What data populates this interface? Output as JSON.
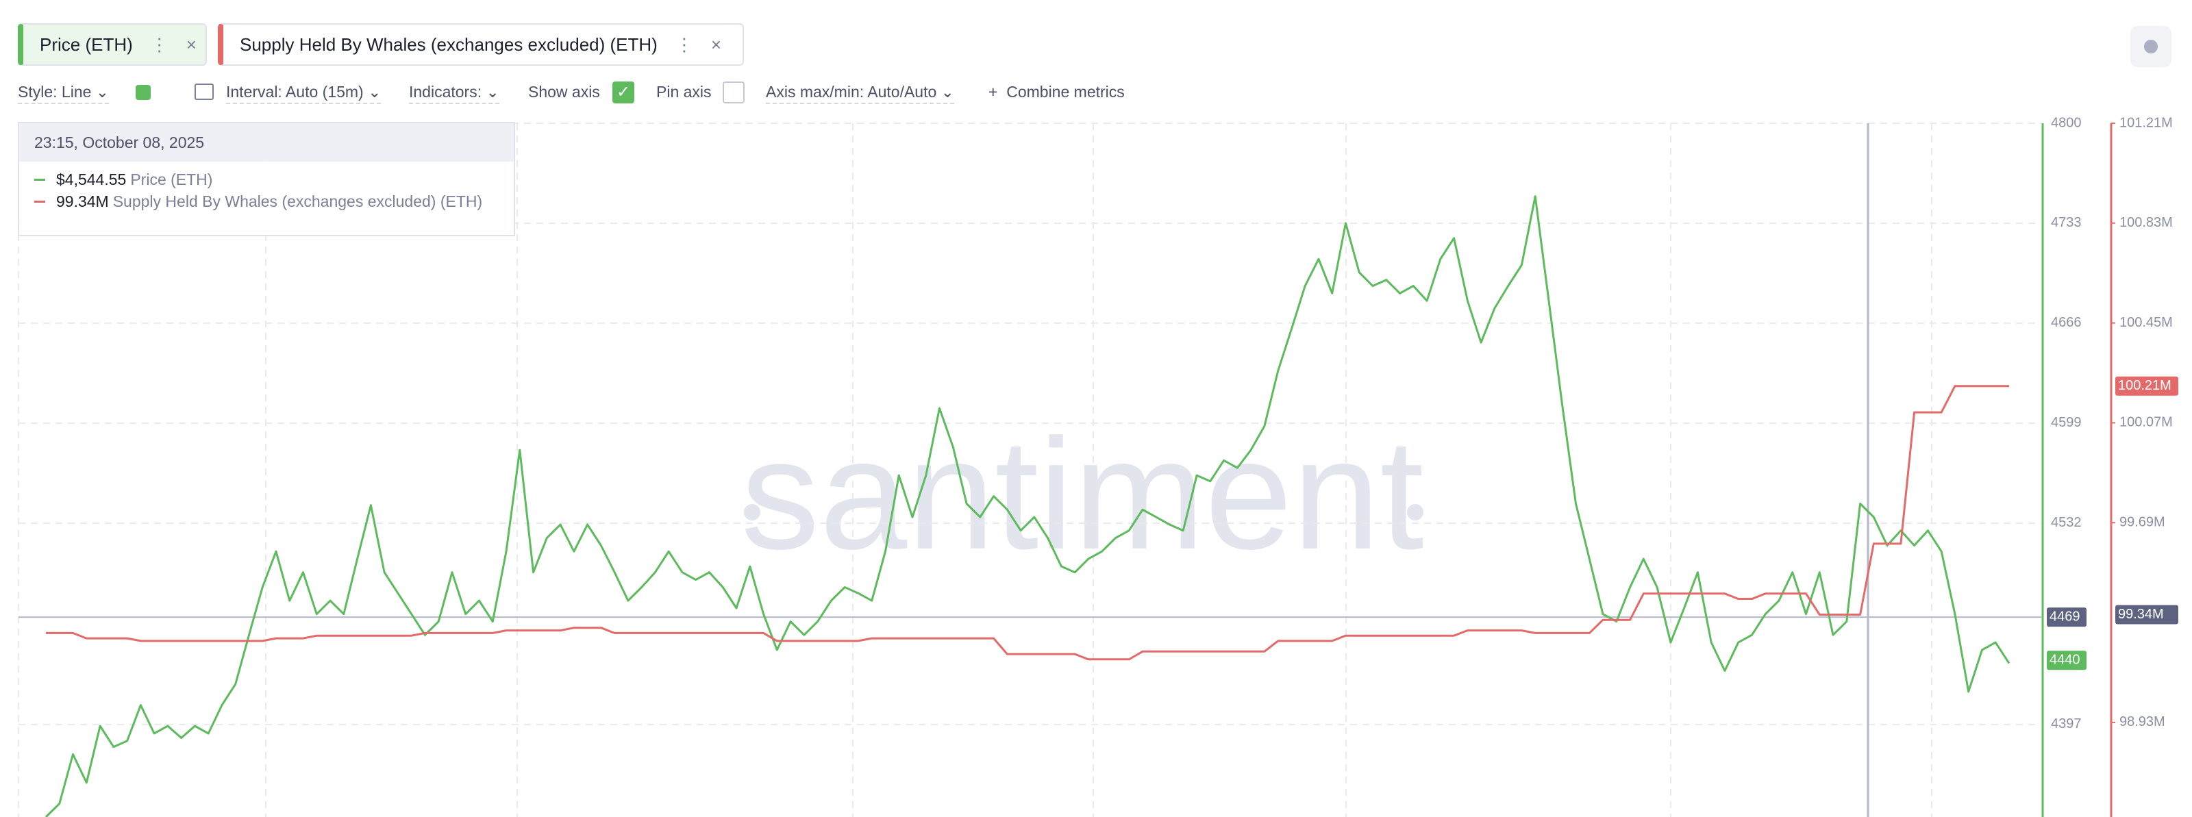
{
  "tabs_note_free": null,
  "toolbar": [
    "Style: Line",
    "Interval: Auto (15m)",
    "Indicators:",
    "Show axis",
    "Pin axis",
    "Axis max/min: Auto/Auto",
    "Combine metrics"
  ],
  "tooltip": {
    "time": "23:15, October 08, 2025",
    "rows": [
      "$4,544.55",
      "99.34M"
    ]
  },
  "chart_data": {
    "type": "line",
    "watermark": "santiment",
    "grid": true,
    "ylim": [
      4335,
      4800
    ],
    "yticks": [
      4397,
      4532,
      4599,
      4666,
      4733,
      4800
    ],
    "y2lim": [
      98570000,
      101210000
    ],
    "y2ticks": [
      {
        "value": 98930000,
        "label": "98.93M"
      },
      {
        "value": 99690000,
        "label": "99.69M"
      },
      {
        "value": 100070000,
        "label": "100.07M"
      },
      {
        "value": 100450000,
        "label": "100.45M"
      },
      {
        "value": 100830000,
        "label": "100.83M"
      },
      {
        "value": 101210000,
        "label": "101.21M"
      }
    ],
    "axis_markers": [
      {
        "value": 4469,
        "axis": "y",
        "color": "#5d6280"
      },
      {
        "value": 4440,
        "axis": "y",
        "color": "#5dba5d"
      },
      {
        "value": 99340000,
        "label": "99.34M",
        "axis": "y2",
        "color": "#5d6280"
      },
      {
        "value": 100210000,
        "label": "100.21M",
        "axis": "y2",
        "color": "#e46a6a"
      }
    ],
    "series": [
      {
        "name": "Price (ETH)",
        "color": "#5dba5d",
        "axis": "y1",
        "values": [
          4335,
          4344,
          4377,
          4358,
          4396,
          4382,
          4386,
          4410,
          4391,
          4396,
          4388,
          4396,
          4391,
          4410,
          4424,
          4457,
          4489,
          4513,
          4480,
          4499,
          4471,
          4480,
          4471,
          4508,
          4544,
          4499,
          4485,
          4471,
          4457,
          4466,
          4499,
          4471,
          4480,
          4466,
          4513,
          4581,
          4499,
          4522,
          4531,
          4513,
          4531,
          4517,
          4499,
          4480,
          4489,
          4499,
          4513,
          4499,
          4494,
          4499,
          4489,
          4475,
          4503,
          4471,
          4447,
          4466,
          4457,
          4466,
          4480,
          4489,
          4485,
          4480,
          4513,
          4564,
          4536,
          4564,
          4609,
          4583,
          4545,
          4536,
          4550,
          4541,
          4527,
          4536,
          4522,
          4503,
          4499,
          4508,
          4513,
          4522,
          4527,
          4541,
          4536,
          4531,
          4527,
          4564,
          4560,
          4574,
          4569,
          4581,
          4597,
          4634,
          4662,
          4691,
          4709,
          4686,
          4733,
          4700,
          4691,
          4695,
          4686,
          4691,
          4681,
          4709,
          4723,
          4681,
          4653,
          4676,
          4691,
          4705,
          4751,
          4681,
          4611,
          4545,
          4508,
          4471,
          4466,
          4489,
          4508,
          4489,
          4452,
          4475,
          4499,
          4452,
          4433,
          4452,
          4457,
          4471,
          4480,
          4499,
          4471,
          4499,
          4457,
          4466,
          4545,
          4536,
          4517,
          4527,
          4517,
          4527,
          4513,
          4471,
          4419,
          4447,
          4452,
          4438
        ]
      },
      {
        "name": "Supply Held By Whales (exchanges excluded) (ETH)",
        "color": "#e46a6a",
        "axis": "y2",
        "values": [
          99270000,
          99270000,
          99270000,
          99250000,
          99250000,
          99250000,
          99250000,
          99240000,
          99240000,
          99240000,
          99240000,
          99240000,
          99240000,
          99240000,
          99240000,
          99240000,
          99240000,
          99250000,
          99250000,
          99250000,
          99260000,
          99260000,
          99260000,
          99260000,
          99260000,
          99260000,
          99260000,
          99260000,
          99270000,
          99270000,
          99270000,
          99270000,
          99270000,
          99270000,
          99280000,
          99280000,
          99280000,
          99280000,
          99280000,
          99290000,
          99290000,
          99290000,
          99270000,
          99270000,
          99270000,
          99270000,
          99270000,
          99270000,
          99270000,
          99270000,
          99270000,
          99270000,
          99270000,
          99270000,
          99240000,
          99240000,
          99240000,
          99240000,
          99240000,
          99240000,
          99240000,
          99250000,
          99250000,
          99250000,
          99250000,
          99250000,
          99250000,
          99250000,
          99250000,
          99250000,
          99250000,
          99190000,
          99190000,
          99190000,
          99190000,
          99190000,
          99190000,
          99170000,
          99170000,
          99170000,
          99170000,
          99200000,
          99200000,
          99200000,
          99200000,
          99200000,
          99200000,
          99200000,
          99200000,
          99200000,
          99200000,
          99240000,
          99240000,
          99240000,
          99240000,
          99240000,
          99260000,
          99260000,
          99260000,
          99260000,
          99260000,
          99260000,
          99260000,
          99260000,
          99260000,
          99280000,
          99280000,
          99280000,
          99280000,
          99280000,
          99270000,
          99270000,
          99270000,
          99270000,
          99270000,
          99320000,
          99320000,
          99320000,
          99420000,
          99420000,
          99420000,
          99420000,
          99420000,
          99420000,
          99420000,
          99400000,
          99400000,
          99420000,
          99420000,
          99420000,
          99420000,
          99340000,
          99340000,
          99340000,
          99340000,
          99610000,
          99610000,
          99610000,
          100110000,
          100110000,
          100110000,
          100210000,
          100210000,
          100210000,
          100210000,
          100210000
        ]
      }
    ]
  }
}
